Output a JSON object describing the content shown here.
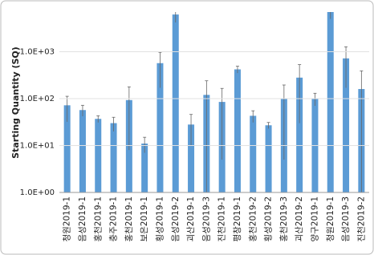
{
  "chart_data": {
    "type": "bar",
    "y_label": "Starting Quantity (SQ)",
    "categories": [
      "청원2019-1",
      "음성2019-1",
      "홍천2019-1",
      "충주2019-1",
      "홍천2019-1",
      "보은2019-1",
      "횡성2019-1",
      "음성2019-2",
      "괴산2019-1",
      "음성2019-3",
      "진천2019-1",
      "평창2019-1",
      "홍천2019-2",
      "횡성2019-2",
      "홍천2019-3",
      "괴산2019-2",
      "양구2019-1",
      "청원2019-1",
      "음성2019-3",
      "진천2019-2"
    ],
    "values": [
      72,
      57,
      37,
      30,
      93,
      11,
      570,
      6200,
      28,
      120,
      85,
      420,
      43,
      27,
      100,
      280,
      100,
      7000,
      720,
      160
    ],
    "errors": [
      40,
      15,
      6,
      10,
      85,
      4,
      400,
      2000,
      18,
      120,
      80,
      70,
      12,
      4,
      95,
      250,
      30,
      2000,
      550,
      230
    ],
    "color": "#5b9bd5",
    "log_scale": true,
    "grid": true,
    "ylim": [
      1,
      7000
    ],
    "yticks": [
      {
        "value": 1,
        "label": "1.0E+00"
      },
      {
        "value": 10,
        "label": "1.0E+01"
      },
      {
        "value": 100,
        "label": "1.0E+02"
      },
      {
        "value": 1000,
        "label": "1.0E+03"
      }
    ]
  }
}
